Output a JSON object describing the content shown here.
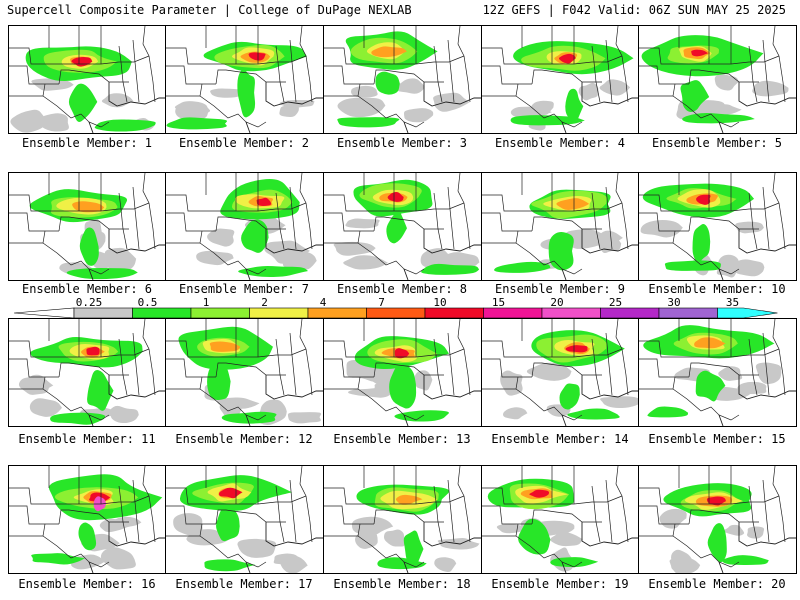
{
  "header": {
    "left": "Supercell Composite Parameter | College of DuPage NEXLAB",
    "right": "12Z GEFS | F042 Valid: 06Z SUN MAY 25 2025"
  },
  "members": [
    {
      "label": "Ensemble Member: 1"
    },
    {
      "label": "Ensemble Member: 2"
    },
    {
      "label": "Ensemble Member: 3"
    },
    {
      "label": "Ensemble Member: 4"
    },
    {
      "label": "Ensemble Member: 5"
    },
    {
      "label": "Ensemble Member: 6"
    },
    {
      "label": "Ensemble Member: 7"
    },
    {
      "label": "Ensemble Member: 8"
    },
    {
      "label": "Ensemble Member: 9"
    },
    {
      "label": "Ensemble Member: 10"
    },
    {
      "label": "Ensemble Member: 11"
    },
    {
      "label": "Ensemble Member: 12"
    },
    {
      "label": "Ensemble Member: 13"
    },
    {
      "label": "Ensemble Member: 14"
    },
    {
      "label": "Ensemble Member: 15"
    },
    {
      "label": "Ensemble Member: 16"
    },
    {
      "label": "Ensemble Member: 17"
    },
    {
      "label": "Ensemble Member: 18"
    },
    {
      "label": "Ensemble Member: 19"
    },
    {
      "label": "Ensemble Member: 20"
    }
  ],
  "colorbar": {
    "labels": [
      "0.25",
      "0.5",
      "1",
      "2",
      "4",
      "7",
      "10",
      "15",
      "20",
      "25",
      "30",
      "35"
    ],
    "colors": [
      "#c8c8c8",
      "#28e628",
      "#8cf032",
      "#f0f046",
      "#ffa020",
      "#ff5a14",
      "#f00a28",
      "#f01496",
      "#f050c8",
      "#b428c8",
      "#a064d2",
      "#30ffff"
    ]
  }
}
